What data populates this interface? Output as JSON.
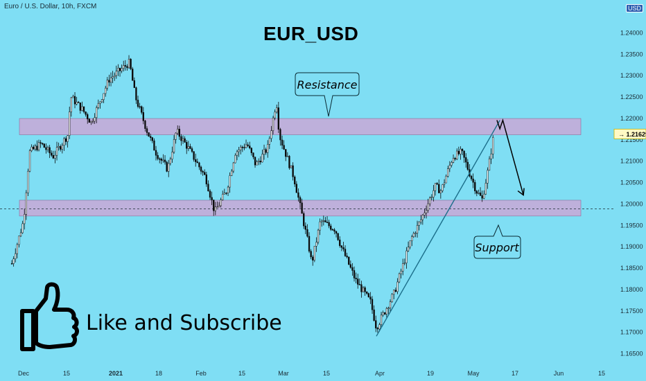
{
  "header": {
    "instrument": "Euro / U.S. Dollar, 10h, FXCM",
    "currency_badge": "USD"
  },
  "chart_data": {
    "type": "candlestick",
    "title": "EUR_USD",
    "price_scale": {
      "ticks": [
        "1.24000",
        "1.23500",
        "1.23000",
        "1.22500",
        "1.22000",
        "1.21500",
        "1.21000",
        "1.20500",
        "1.20000",
        "1.19500",
        "1.19000",
        "1.18500",
        "1.18000",
        "1.17500",
        "1.17000",
        "1.16500"
      ],
      "range": [
        1.163,
        1.2475
      ],
      "current_price": "1.21629",
      "current_price_value": 1.21629,
      "dashed_line_value": 1.1988
    },
    "time_scale": {
      "labels": [
        "Dec",
        "15",
        "2021",
        "18",
        "Feb",
        "15",
        "Mar",
        "15",
        "Apr",
        "19",
        "May",
        "17",
        "Jun",
        "15"
      ]
    },
    "zones": [
      {
        "name": "Resistance",
        "low": 1.2161,
        "high": 1.2199
      },
      {
        "name": "Support",
        "low": 1.1971,
        "high": 1.2008
      }
    ],
    "annotations": {
      "resistance_label": "Resistance",
      "support_label": "Support"
    },
    "price_path": [
      [
        "Nov 27",
        1.186
      ],
      [
        "Dec 1",
        1.196
      ],
      [
        "Dec 3",
        1.212
      ],
      [
        "Dec 7",
        1.214
      ],
      [
        "Dec 11",
        1.211
      ],
      [
        "Dec 16",
        1.216
      ],
      [
        "Dec 17",
        1.225
      ],
      [
        "Dec 21",
        1.222
      ],
      [
        "Dec 24",
        1.219
      ],
      [
        "Dec 30",
        1.229
      ],
      [
        "Jan 6",
        1.233
      ],
      [
        "Jan 8",
        1.225
      ],
      [
        "Jan 12",
        1.217
      ],
      [
        "Jan 15",
        1.212
      ],
      [
        "Jan 19",
        1.208
      ],
      [
        "Jan 22",
        1.217
      ],
      [
        "Jan 26",
        1.213
      ],
      [
        "Feb 1",
        1.206
      ],
      [
        "Feb 4",
        1.198
      ],
      [
        "Feb 8",
        1.203
      ],
      [
        "Feb 11",
        1.212
      ],
      [
        "Feb 15",
        1.214
      ],
      [
        "Feb 18",
        1.209
      ],
      [
        "Feb 22",
        1.213
      ],
      [
        "Feb 25",
        1.224
      ],
      [
        "Feb 26",
        1.216
      ],
      [
        "Mar 3",
        1.206
      ],
      [
        "Mar 8",
        1.19
      ],
      [
        "Mar 9",
        1.186
      ],
      [
        "Mar 12",
        1.196
      ],
      [
        "Mar 17",
        1.194
      ],
      [
        "Mar 19",
        1.19
      ],
      [
        "Mar 24",
        1.182
      ],
      [
        "Mar 29",
        1.177
      ],
      [
        "Mar 31",
        1.171
      ],
      [
        "Apr 6",
        1.179
      ],
      [
        "Apr 12",
        1.192
      ],
      [
        "Apr 15",
        1.196
      ],
      [
        "Apr 20",
        1.204
      ],
      [
        "Apr 22",
        1.203
      ],
      [
        "Apr 26",
        1.211
      ],
      [
        "Apr 29",
        1.212
      ],
      [
        "May 4",
        1.203
      ],
      [
        "May 6",
        1.201
      ],
      [
        "May 8",
        1.208
      ],
      [
        "May 10",
        1.2163
      ]
    ],
    "drawings": {
      "trendline": [
        [
          "Mar 31",
          1.169
        ],
        [
          "May 12",
          1.2195
        ]
      ],
      "projection": [
        [
          "May 11",
          1.2195
        ],
        [
          "May 12",
          1.2175
        ],
        [
          "May 13",
          1.2195
        ],
        [
          "May 20",
          1.202
        ]
      ]
    }
  },
  "overlay": {
    "call_to_action": "Like and Subscribe",
    "thumb_icon": "thumbs-up-icon"
  },
  "colors": {
    "background": "#7fdef4",
    "zone_fill": "#c9a8d6",
    "candle": "#0a0a0a",
    "trendline": "#1b6e8a",
    "accent": "#2a5db0"
  }
}
